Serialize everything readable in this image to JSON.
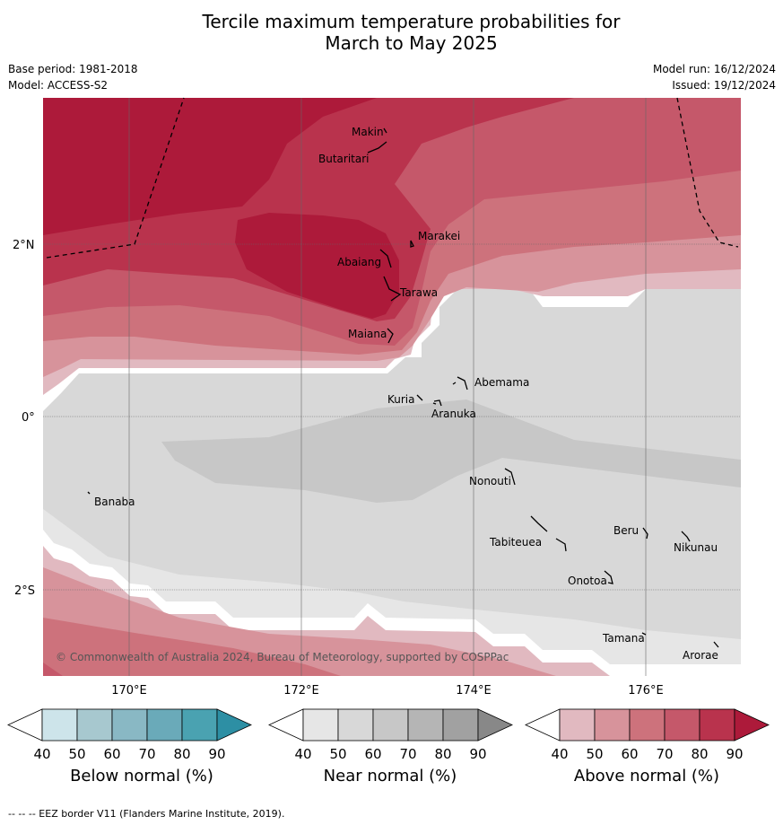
{
  "title": {
    "line1": "Tercile maximum temperature probabilities for",
    "line2": "March to May 2025"
  },
  "meta": {
    "base_period": "Base period: 1981-2018",
    "model": "Model: ACCESS-S2",
    "model_run": "Model run: 16/12/2024",
    "issued": "Issued: 19/12/2024"
  },
  "map": {
    "lat_labels": [
      "2°N",
      "0°",
      "2°S"
    ],
    "lon_labels": [
      "170°E",
      "172°E",
      "174°E",
      "176°E"
    ],
    "copyright": "© Commonwealth of Australia 2024, Bureau of Meteorology, supported by COSPPac",
    "places": [
      "Makin",
      "Butaritari",
      "Marakei",
      "Abaiang",
      "Tarawa",
      "Maiana",
      "Abemama",
      "Kuria",
      "Aranuka",
      "Nonouti",
      "Banaba",
      "Tabiteuea",
      "Beru",
      "Nikunau",
      "Onotoa",
      "Tamana",
      "Arorae"
    ]
  },
  "colorbars": [
    {
      "title": "Below normal (%)",
      "ticks": [
        "40",
        "50",
        "60",
        "70",
        "80",
        "90"
      ],
      "colors": [
        "#ffffff",
        "#cde4ea",
        "#a7c8cf",
        "#89b8c4",
        "#6aaab9",
        "#4aa2b1",
        "#2d8fa4"
      ]
    },
    {
      "title": "Near normal (%)",
      "ticks": [
        "40",
        "50",
        "60",
        "70",
        "80",
        "90"
      ],
      "colors": [
        "#ffffff",
        "#e6e6e6",
        "#d8d8d8",
        "#c7c7c7",
        "#b5b5b5",
        "#a1a1a1",
        "#888888"
      ]
    },
    {
      "title": "Above normal (%)",
      "ticks": [
        "40",
        "50",
        "60",
        "70",
        "80",
        "90"
      ],
      "colors": [
        "#ffffff",
        "#e1b9c0",
        "#d7939b",
        "#cd727c",
        "#c5586a",
        "#b9334d",
        "#ad1a3a"
      ]
    }
  ],
  "footer": "--  --  -- EEZ border V11 (Flanders Marine Institute, 2019)."
}
